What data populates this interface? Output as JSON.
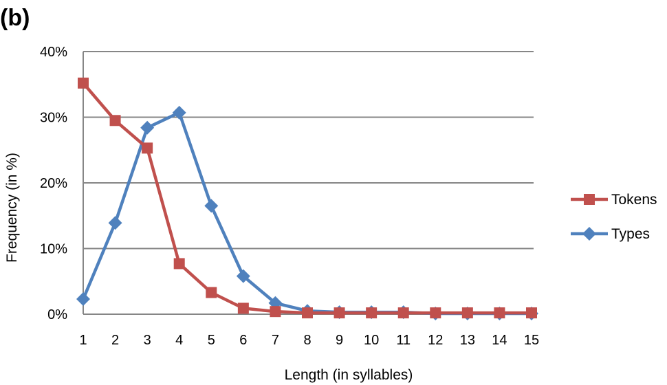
{
  "panel_label": "(b)",
  "chart_data": {
    "type": "line",
    "title": "",
    "xlabel": "Length (in syllables)",
    "ylabel": "Frequency (in %)",
    "categories": [
      "1",
      "2",
      "3",
      "4",
      "5",
      "6",
      "7",
      "8",
      "9",
      "10",
      "11",
      "12",
      "13",
      "14",
      "15"
    ],
    "ylim": [
      0,
      40
    ],
    "yticks": [
      0,
      10,
      20,
      30,
      40
    ],
    "ytick_labels": [
      "0%",
      "10%",
      "20%",
      "30%",
      "40%"
    ],
    "grid": "horizontal",
    "legend_position": "right",
    "series": [
      {
        "name": "Tokens",
        "color": "#C0504D",
        "marker": "square",
        "values": [
          35.2,
          29.5,
          25.3,
          7.7,
          3.3,
          0.9,
          0.4,
          0.2,
          0.2,
          0.2,
          0.2,
          0.2,
          0.2,
          0.2,
          0.2
        ]
      },
      {
        "name": "Types",
        "color": "#4F81BD",
        "marker": "diamond",
        "values": [
          2.3,
          13.9,
          28.4,
          30.7,
          16.5,
          5.8,
          1.7,
          0.5,
          0.3,
          0.3,
          0.3,
          0.1,
          0.1,
          0.1,
          0.1
        ]
      }
    ]
  }
}
